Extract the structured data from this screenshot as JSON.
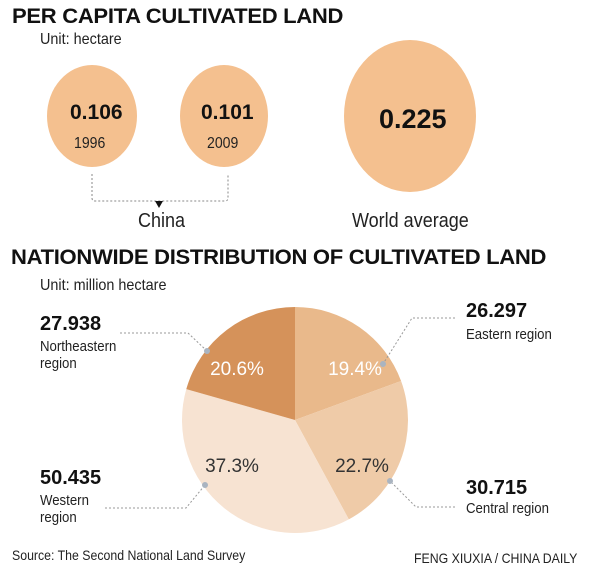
{
  "chart_data": [
    {
      "type": "bubble",
      "title": "PER CAPITA CULTIVATED LAND",
      "unit": "Unit: hectare",
      "items": [
        {
          "value": "0.106",
          "year": "1996",
          "group": "China"
        },
        {
          "value": "0.101",
          "year": "2009",
          "group": "China"
        },
        {
          "value": "0.225",
          "label": "World average"
        }
      ],
      "group_label": "China",
      "color": "#f4c08f"
    },
    {
      "type": "pie",
      "title": "NATIONWIDE DISTRIBUTION OF CULTIVATED LAND",
      "unit": "Unit: million hectare",
      "slices": [
        {
          "name": "Eastern region",
          "value": "26.297",
          "percent": 19.4,
          "percent_label": "19.4%",
          "color": "#e9b98b"
        },
        {
          "name": "Central region",
          "value": "30.715",
          "percent": 22.7,
          "percent_label": "22.7%",
          "color": "#efcba8"
        },
        {
          "name": "Western region",
          "value": "50.435",
          "percent": 37.3,
          "percent_label": "37.3%",
          "color": "#f7e3d2"
        },
        {
          "name": "Northeastern region",
          "value": "27.938",
          "percent": 20.6,
          "percent_label": "20.6%",
          "color": "#d5925a"
        }
      ],
      "start": "12 o'clock, clockwise"
    }
  ],
  "footer": {
    "source": "Source: The Second National Land Survey",
    "credit": "FENG XIUXIA / CHINA DAILY"
  }
}
